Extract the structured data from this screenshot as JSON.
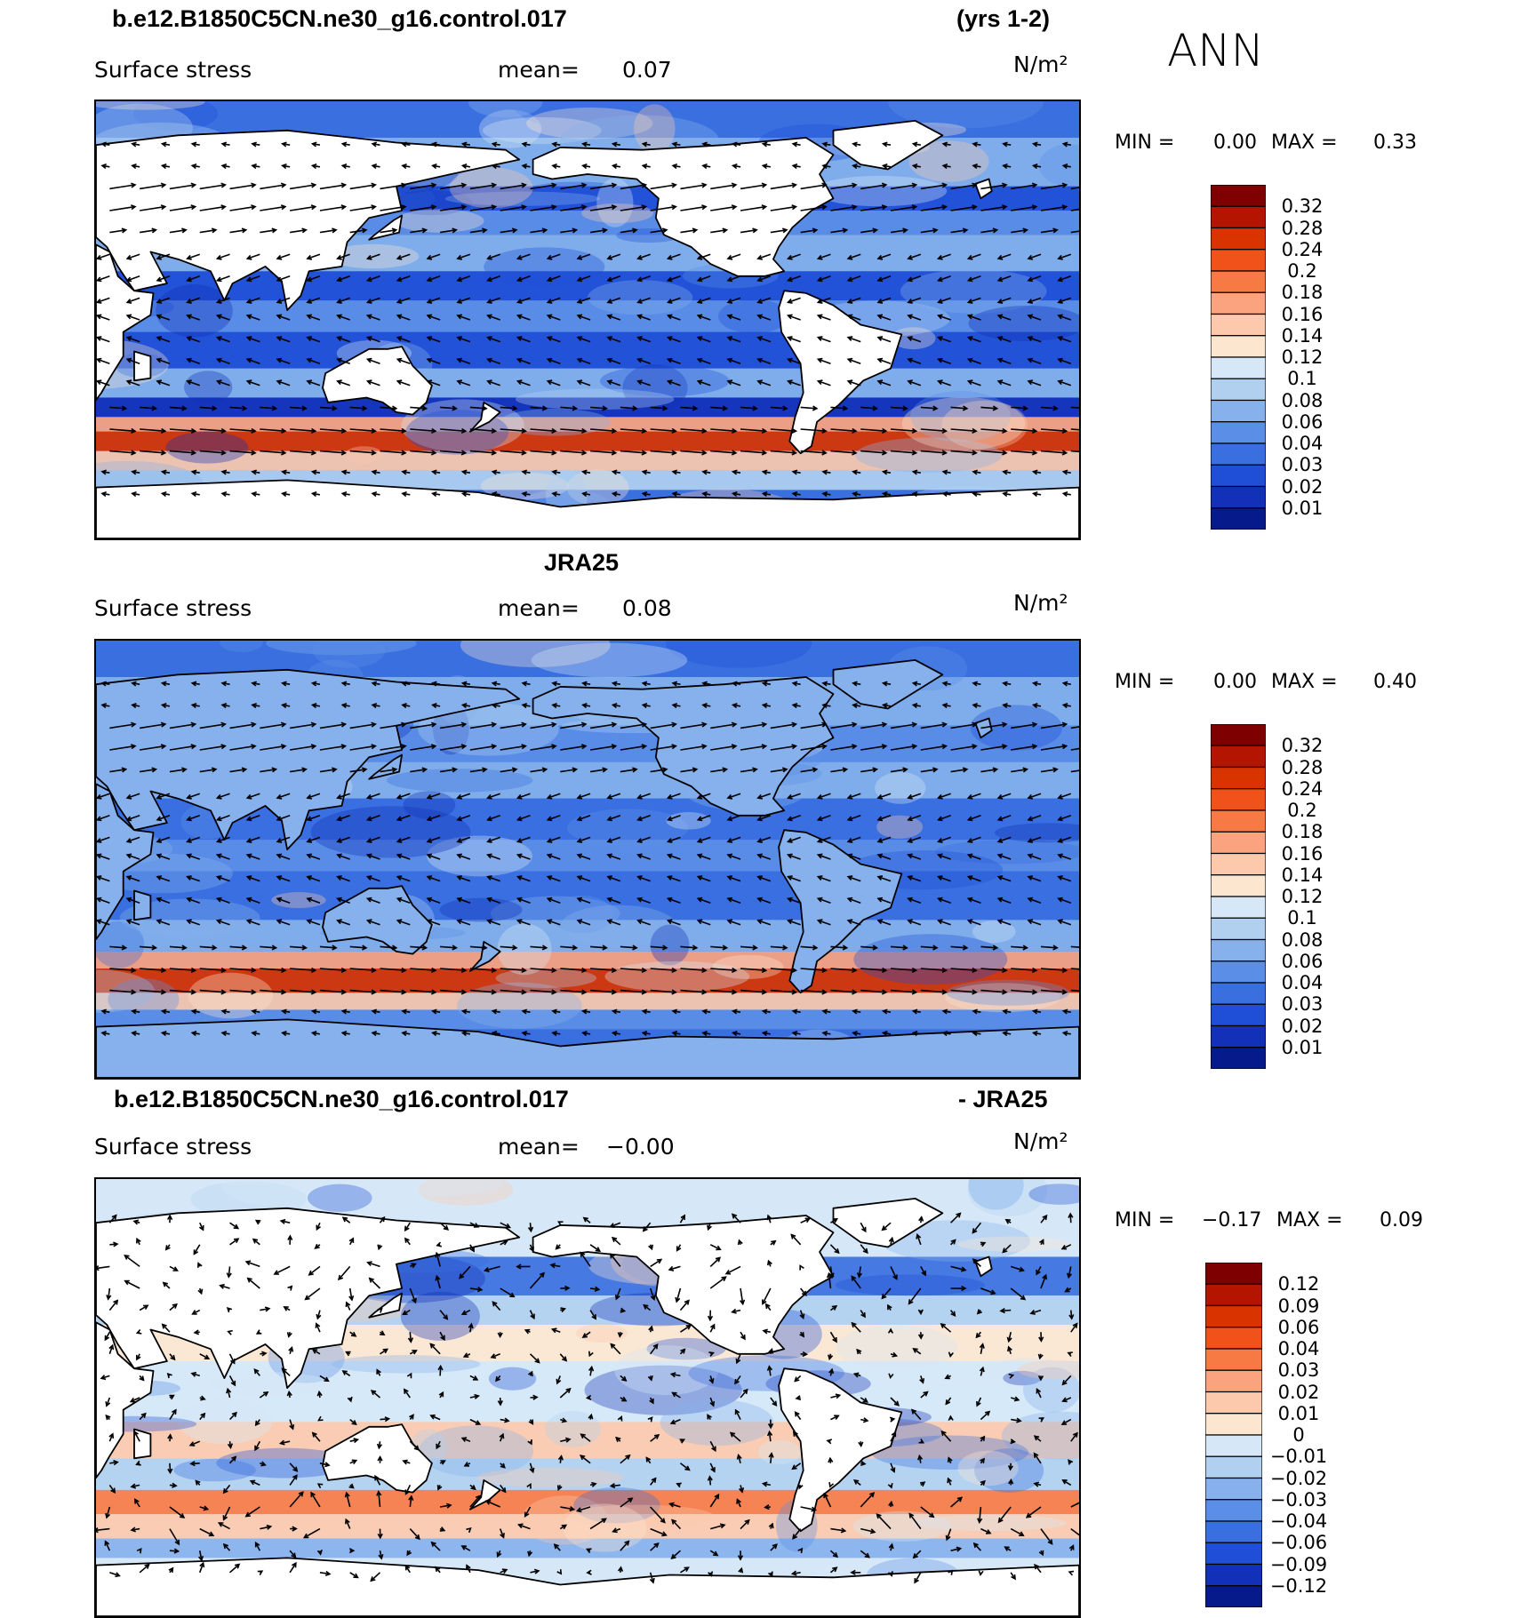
{
  "header": {
    "case_name": "b.e12.B1850C5CN.ne30_g16.control.017",
    "years": "(yrs 1-2)",
    "season": "ANN"
  },
  "panels": [
    {
      "id": "model",
      "variable": "Surface stress",
      "mean_label": "mean=",
      "mean_value": "0.07",
      "units": "N/m²",
      "min_label": "MIN =",
      "min_value": "0.00",
      "max_label": "MAX =",
      "max_value": "0.33",
      "colorbar_labels": [
        "0.32",
        "0.28",
        "0.24",
        "0.2",
        "0.18",
        "0.16",
        "0.14",
        "0.12",
        "0.1",
        "0.08",
        "0.06",
        "0.04",
        "0.03",
        "0.02",
        "0.01"
      ]
    },
    {
      "id": "obs",
      "title": "JRA25",
      "variable": "Surface stress",
      "mean_label": "mean=",
      "mean_value": "0.08",
      "units": "N/m²",
      "min_label": "MIN =",
      "min_value": "0.00",
      "max_label": "MAX =",
      "max_value": "0.40",
      "colorbar_labels": [
        "0.32",
        "0.28",
        "0.24",
        "0.2",
        "0.18",
        "0.16",
        "0.14",
        "0.12",
        "0.1",
        "0.08",
        "0.06",
        "0.04",
        "0.03",
        "0.02",
        "0.01"
      ]
    },
    {
      "id": "diff",
      "title_left": "b.e12.B1850C5CN.ne30_g16.control.017",
      "title_right": "- JRA25",
      "variable": "Surface stress",
      "mean_label": "mean=",
      "mean_value": "−0.00",
      "units": "N/m²",
      "min_label": "MIN =",
      "min_value": "−0.17",
      "max_label": "MAX =",
      "max_value": "0.09",
      "colorbar_labels": [
        "0.12",
        "0.09",
        "0.06",
        "0.04",
        "0.03",
        "0.02",
        "0.01",
        "0",
        "−0.01",
        "−0.02",
        "−0.03",
        "−0.04",
        "−0.06",
        "−0.09",
        "−0.12"
      ]
    }
  ],
  "colors": {
    "scale": [
      "#7f0000",
      "#b31500",
      "#d93300",
      "#f0521a",
      "#f77a45",
      "#fba37e",
      "#fcc9ac",
      "#fde6d0",
      "#d6e8f7",
      "#b1d0f0",
      "#86b1ec",
      "#5b8ee6",
      "#3a6fe0",
      "#1f4fd6",
      "#1231b8",
      "#061a8c"
    ],
    "diff_scale": [
      "#7f0000",
      "#b31500",
      "#d93300",
      "#f0521a",
      "#f77a45",
      "#fba37e",
      "#fcc9ac",
      "#fde6d0",
      "#d6e8f7",
      "#b1d0f0",
      "#86b1ec",
      "#5b8ee6",
      "#3a6fe0",
      "#1f4fd6",
      "#1231b8",
      "#061a8c"
    ]
  }
}
